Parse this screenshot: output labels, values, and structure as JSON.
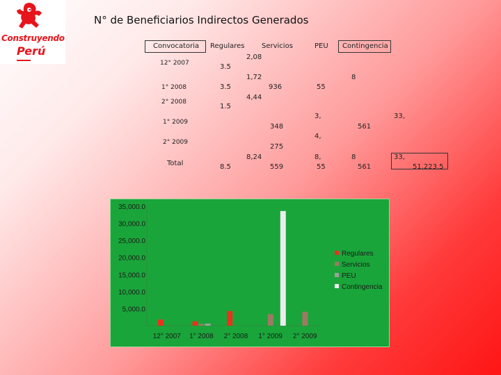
{
  "logo": {
    "line1": "Construyendo",
    "line2": "Perú"
  },
  "title": "N° de Beneficiarios Indirectos Generados",
  "table": {
    "headers": [
      "Convocatoria",
      "Regulares",
      "Servicios",
      "PEU",
      "Contingencia"
    ],
    "rows": [
      {
        "label": "12° 2007",
        "regulares": "3.5",
        "servicios": "2,08"
      },
      {
        "label": "1° 2008",
        "regulares": "3.5",
        "servicios": "1,72",
        "servicios2": "936",
        "peu": "55",
        "contingencia": "8"
      },
      {
        "label": "2° 2008",
        "regulares": "1.5",
        "servicios": "4,44"
      },
      {
        "label": "1° 2009",
        "servicios": "348",
        "peu": "3,",
        "contingencia": "561",
        "extra": "33,"
      },
      {
        "label": "2° 2009",
        "servicios": "275",
        "peu": "4,"
      },
      {
        "label": "Total",
        "regulares": "8.5",
        "servicios": "8,24",
        "servicios2": "559",
        "peu": "8,",
        "peu2": "55",
        "contingencia": "8",
        "contingencia2": "561",
        "extra": "33,",
        "total": "51,223.5"
      }
    ]
  },
  "chart_data": {
    "type": "bar",
    "categories": [
      "12° 2007",
      "1° 2008",
      "2° 2008",
      "1° 2009",
      "2° 2009"
    ],
    "series": [
      {
        "name": "Regulares",
        "color": "#e8321c",
        "values": [
          1800,
          1300,
          4300,
          0,
          0
        ]
      },
      {
        "name": "Servicios",
        "color": "#9b7a64",
        "values": [
          0,
          500,
          0,
          3400,
          4100
        ]
      },
      {
        "name": "PEU",
        "color": "#a0a0a0",
        "values": [
          0,
          600,
          0,
          0,
          0
        ]
      },
      {
        "name": "Contingencia",
        "color": "#ececec",
        "values": [
          0,
          0,
          0,
          33600,
          0
        ]
      }
    ],
    "yticks": [
      "35,000.0",
      "30,000.0",
      "25,000.0",
      "20,000.0",
      "15,000.0",
      "10,000.0",
      "5,000.0"
    ],
    "ytick_values": [
      35000,
      30000,
      25000,
      20000,
      15000,
      10000,
      5000
    ],
    "ylim": [
      0,
      35000
    ],
    "grid": false,
    "legend_position": "right"
  }
}
